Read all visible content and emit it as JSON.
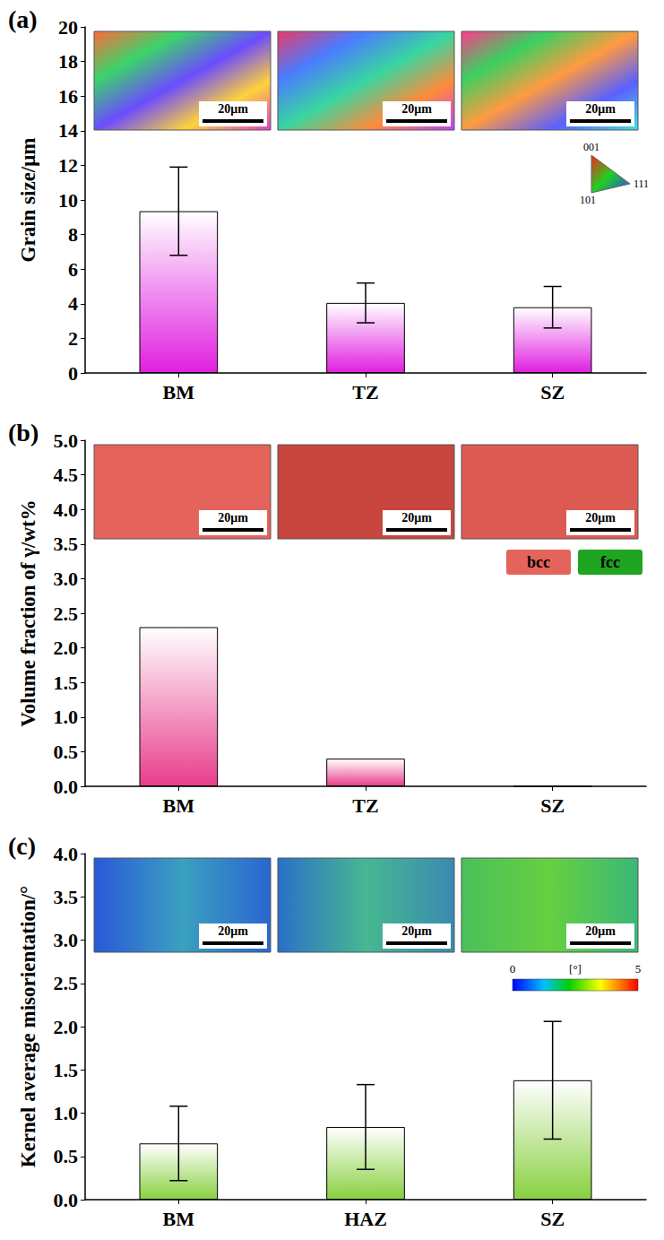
{
  "chart_data": [
    {
      "type": "bar",
      "label": "(a)",
      "y_label": "Grain size/μm",
      "categories": [
        "BM",
        "TZ",
        "SZ"
      ],
      "values": [
        9.35,
        4.05,
        3.8
      ],
      "errors": [
        2.55,
        1.15,
        1.2
      ],
      "color": "#e020e0",
      "ylim": [
        0,
        20
      ],
      "yticks": [
        0,
        2,
        4,
        6,
        8,
        10,
        12,
        14,
        16,
        18,
        20
      ],
      "grid": false,
      "insets": {
        "kind": "ipf",
        "scale_bars": [
          "20μm",
          "20μm",
          "20μm"
        ],
        "key": {
          "kind": "ipf_triangle",
          "labels": [
            "001",
            "101",
            "111"
          ]
        }
      }
    },
    {
      "type": "bar",
      "label": "(b)",
      "y_label": "Volume fraction of γ/wt%",
      "categories": [
        "BM",
        "TZ",
        "SZ"
      ],
      "values": [
        2.3,
        0.4,
        0
      ],
      "color": "#e83e8c",
      "ylim": [
        0,
        5
      ],
      "yticks": [
        {
          "value": 0,
          "label": "0.0"
        },
        {
          "value": 0.5,
          "label": "0.5"
        },
        {
          "value": 1,
          "label": "1.0"
        },
        {
          "value": 1.5,
          "label": "1.5"
        },
        {
          "value": 2,
          "label": "2.0"
        },
        {
          "value": 2.5,
          "label": "2.5"
        },
        {
          "value": 3,
          "label": "3.0"
        },
        {
          "value": 3.5,
          "label": "3.5"
        },
        {
          "value": 4,
          "label": "4.0"
        },
        {
          "value": 4.5,
          "label": "4.5"
        },
        {
          "value": 5,
          "label": "5.0"
        }
      ],
      "grid": false,
      "insets": {
        "kind": "phase",
        "scale_bars": [
          "20μm",
          "20μm",
          "20μm"
        ],
        "key": {
          "kind": "phase_boxes",
          "labels": [
            "bcc",
            "fcc"
          ],
          "colors": [
            "#e4645c",
            "#1fa51f"
          ]
        }
      }
    },
    {
      "type": "bar",
      "label": "(c)",
      "y_label": "Kernel average misorientation/°",
      "categories": [
        "BM",
        "HAZ",
        "SZ"
      ],
      "values": [
        0.65,
        0.84,
        1.38
      ],
      "errors": [
        0.43,
        0.49,
        0.68
      ],
      "color": "#88d040",
      "ylim": [
        0,
        4
      ],
      "yticks": [
        {
          "value": 0,
          "label": "0.0"
        },
        {
          "value": 0.5,
          "label": "0.5"
        },
        {
          "value": 1,
          "label": "1.0"
        },
        {
          "value": 1.5,
          "label": "1.5"
        },
        {
          "value": 2,
          "label": "2.0"
        },
        {
          "value": 2.5,
          "label": "2.5"
        },
        {
          "value": 3,
          "label": "3.0"
        },
        {
          "value": 3.5,
          "label": "3.5"
        },
        {
          "value": 4,
          "label": "4.0"
        }
      ],
      "grid": false,
      "insets": {
        "kind": "kam",
        "scale_bars": [
          "20μm",
          "20μm",
          "20μm"
        ],
        "key": {
          "kind": "colorbar",
          "label": "[°]",
          "range": [
            0,
            5
          ],
          "ticks": [
            0,
            5
          ]
        }
      }
    }
  ]
}
